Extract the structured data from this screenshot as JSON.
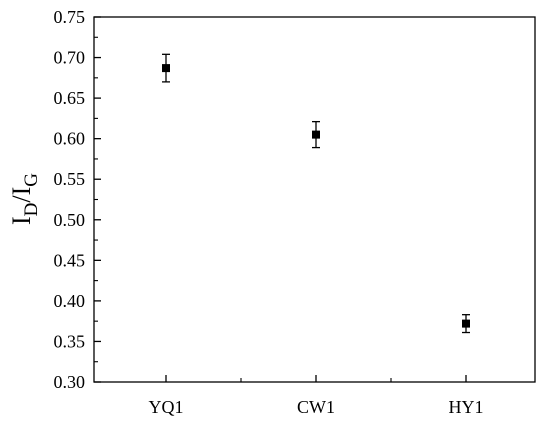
{
  "chart_data": {
    "type": "scatter",
    "categories": [
      "YQ1",
      "CW1",
      "HY1"
    ],
    "series": [
      {
        "values": [
          0.687,
          0.605,
          0.372
        ],
        "errors": [
          0.017,
          0.016,
          0.011
        ],
        "marker": "square",
        "color": "#000000"
      }
    ],
    "title": "",
    "xlabel": "",
    "ylabel": "I_D/I_G",
    "ylabel_main_left": "I",
    "ylabel_sub_left": "D",
    "ylabel_slash": "/",
    "ylabel_main_right": "I",
    "ylabel_sub_right": "G",
    "ylim": [
      0.3,
      0.75
    ],
    "yticks": [
      "0.30",
      "0.35",
      "0.40",
      "0.45",
      "0.50",
      "0.55",
      "0.60",
      "0.65",
      "0.70",
      "0.75"
    ],
    "grid": false,
    "legend": "none"
  }
}
